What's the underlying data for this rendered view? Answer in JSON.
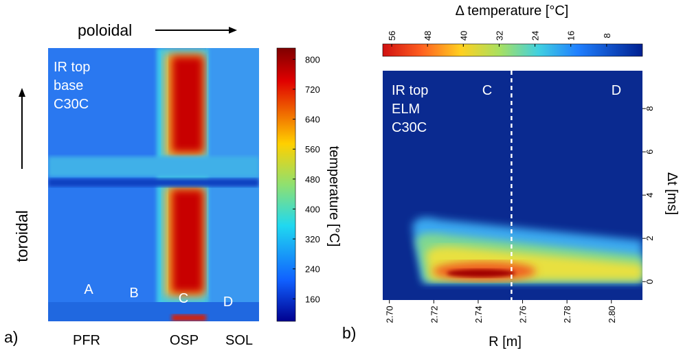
{
  "panel_a": {
    "label": "a)",
    "arrow_x": "poloidal",
    "arrow_y": "toroidal",
    "annotation": [
      "IR top",
      "base",
      "C30C"
    ],
    "regions": [
      "A",
      "B",
      "C",
      "D"
    ],
    "x_labels": [
      "PFR",
      "OSP",
      "SOL"
    ],
    "colorbar": {
      "title": "temperature [°C]",
      "lim": [
        100,
        830
      ],
      "ticks": [
        160,
        240,
        320,
        400,
        480,
        560,
        640,
        720,
        800
      ]
    }
  },
  "panel_b": {
    "label": "b)",
    "annotation": [
      "IR top",
      "ELM",
      "C30C"
    ],
    "regions": [
      "C",
      "D"
    ],
    "xlabel": "R [m]",
    "ylabel": "Δt [ms]",
    "xlim": [
      2.697,
      2.814
    ],
    "xticks": [
      {
        "value": 2.7,
        "label": "2.70"
      },
      2.72,
      2.74,
      2.76,
      2.78,
      {
        "value": 2.8,
        "label": "2.80"
      }
    ],
    "ylim": [
      -0.85,
      9.75
    ],
    "yticks": [
      0,
      2,
      4,
      6,
      8
    ],
    "divider": 2.755,
    "colorbar": {
      "title": "Δ temperature [°C]",
      "lim": [
        58,
        0
      ],
      "ticks": [
        56,
        48,
        40,
        32,
        24,
        16,
        8
      ]
    }
  }
}
